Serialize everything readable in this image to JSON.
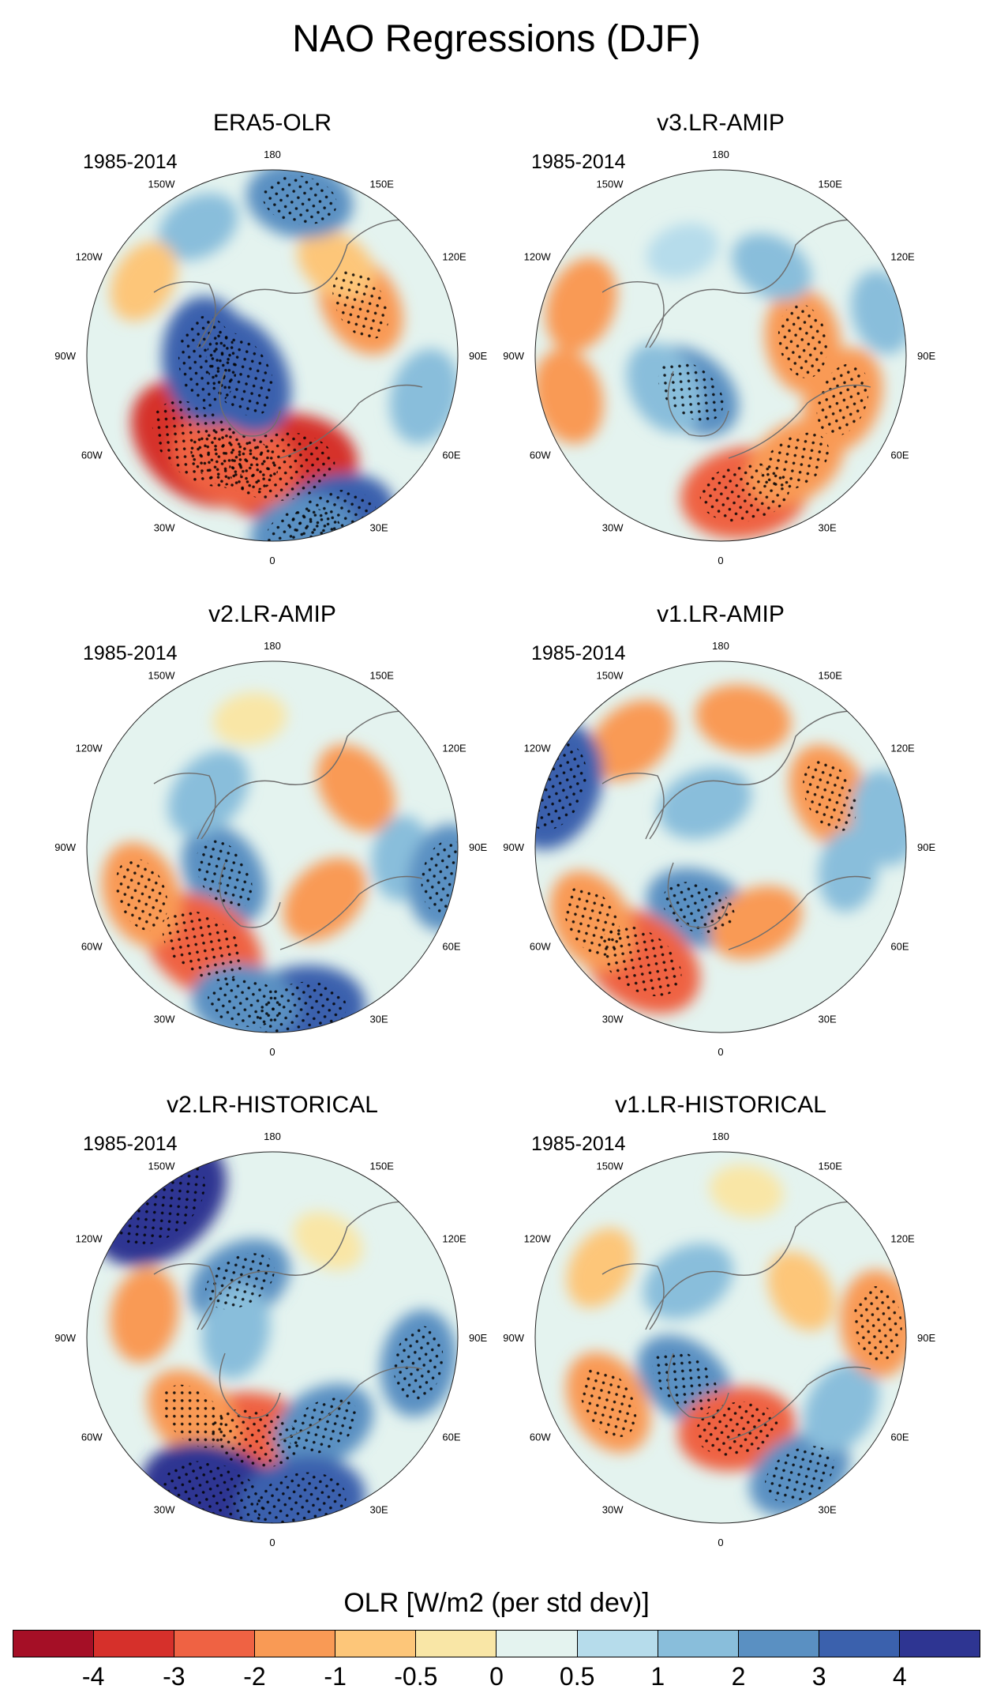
{
  "title": "NAO Regressions (DJF)",
  "chart_data": {
    "type": "heatmap",
    "projection": "north polar stereographic",
    "title": "NAO Regressions (DJF)",
    "period": "1985-2014",
    "variable": "OLR",
    "colorbar_label": "OLR [W/m2 (per std dev)]",
    "colorbar_levels": [
      "-4",
      "-3",
      "-2",
      "-1",
      "-0.5",
      "0",
      "0.5",
      "1",
      "2",
      "3",
      "4"
    ],
    "colorbar_colors": [
      "#a50f26",
      "#d6302b",
      "#ef6243",
      "#f99a55",
      "#fdc679",
      "#f9e6a6",
      "#e4f3ef",
      "#b6dceb",
      "#89bedb",
      "#5a90c2",
      "#3b61ad",
      "#2e3592"
    ],
    "longitude_labels": [
      "180",
      "150E",
      "120E",
      "90E",
      "60E",
      "30E",
      "0",
      "30W",
      "60W",
      "90W",
      "120W",
      "150W"
    ],
    "panels": [
      {
        "name": "ERA5-OLR",
        "period": "1985-2014",
        "blobs": [
          {
            "lon": -40,
            "colat": 0.62,
            "value": -4
          },
          {
            "lon": 5,
            "colat": 0.6,
            "value": -4
          },
          {
            "lon": -20,
            "colat": 0.6,
            "value": -3
          },
          {
            "lon": -85,
            "colat": 0.35,
            "value": 3
          },
          {
            "lon": -60,
            "colat": 0.2,
            "value": 3
          },
          {
            "lon": 20,
            "colat": 0.95,
            "value": 3
          },
          {
            "lon": 10,
            "colat": 0.97,
            "value": 2
          },
          {
            "lon": 120,
            "colat": 0.55,
            "value": -2
          },
          {
            "lon": 145,
            "colat": 0.6,
            "value": -1
          },
          {
            "lon": 170,
            "colat": 0.85,
            "value": 2
          },
          {
            "lon": -150,
            "colat": 0.8,
            "value": 1
          },
          {
            "lon": 75,
            "colat": 0.85,
            "value": 1.5
          },
          {
            "lon": -120,
            "colat": 0.8,
            "value": -1
          }
        ]
      },
      {
        "name": "v3.LR-AMIP",
        "period": "1985-2014",
        "blobs": [
          {
            "lon": -40,
            "colat": 0.25,
            "value": 2
          },
          {
            "lon": -60,
            "colat": 0.35,
            "value": 1.5
          },
          {
            "lon": 10,
            "colat": 0.75,
            "value": -3
          },
          {
            "lon": 35,
            "colat": 0.7,
            "value": -2
          },
          {
            "lon": 100,
            "colat": 0.45,
            "value": -2
          },
          {
            "lon": 70,
            "colat": 0.7,
            "value": -2
          },
          {
            "lon": -110,
            "colat": 0.8,
            "value": -1.5
          },
          {
            "lon": -75,
            "colat": 0.85,
            "value": -1.5
          },
          {
            "lon": 150,
            "colat": 0.55,
            "value": 1
          },
          {
            "lon": 105,
            "colat": 0.9,
            "value": 1
          },
          {
            "lon": -160,
            "colat": 0.6,
            "value": 0.5
          }
        ]
      },
      {
        "name": "v2.LR-AMIP",
        "period": "1985-2014",
        "blobs": [
          {
            "lon": -60,
            "colat": 0.3,
            "value": 2
          },
          {
            "lon": -130,
            "colat": 0.45,
            "value": 1.5
          },
          {
            "lon": -35,
            "colat": 0.65,
            "value": -3
          },
          {
            "lon": -70,
            "colat": 0.75,
            "value": -2
          },
          {
            "lon": 10,
            "colat": 0.9,
            "value": 3
          },
          {
            "lon": -10,
            "colat": 0.85,
            "value": 2
          },
          {
            "lon": 45,
            "colat": 0.4,
            "value": -1.5
          },
          {
            "lon": 125,
            "colat": 0.55,
            "value": -1.5
          },
          {
            "lon": 85,
            "colat": 0.7,
            "value": 1
          },
          {
            "lon": 80,
            "colat": 0.95,
            "value": 2
          },
          {
            "lon": -170,
            "colat": 0.7,
            "value": -0.5
          }
        ]
      },
      {
        "name": "v1.LR-AMIP",
        "period": "1985-2014",
        "blobs": [
          {
            "lon": -20,
            "colat": 0.35,
            "value": 2
          },
          {
            "lon": -160,
            "colat": 0.25,
            "value": 1.5
          },
          {
            "lon": -35,
            "colat": 0.75,
            "value": -3
          },
          {
            "lon": -60,
            "colat": 0.8,
            "value": -2
          },
          {
            "lon": 25,
            "colat": 0.45,
            "value": -1.5
          },
          {
            "lon": 115,
            "colat": 0.65,
            "value": -2
          },
          {
            "lon": 170,
            "colat": 0.7,
            "value": -1.5
          },
          {
            "lon": -140,
            "colat": 0.75,
            "value": -1.5
          },
          {
            "lon": -110,
            "colat": 0.95,
            "value": 3
          },
          {
            "lon": 80,
            "colat": 0.7,
            "value": 1
          },
          {
            "lon": 100,
            "colat": 0.9,
            "value": 1.5
          }
        ]
      },
      {
        "name": "v2.LR-HISTORICAL",
        "period": "1985-2014",
        "blobs": [
          {
            "lon": -150,
            "colat": 0.35,
            "value": 2
          },
          {
            "lon": -100,
            "colat": 0.2,
            "value": 1.5
          },
          {
            "lon": -140,
            "colat": 0.95,
            "value": 4
          },
          {
            "lon": -10,
            "colat": 0.55,
            "value": -3
          },
          {
            "lon": -45,
            "colat": 0.6,
            "value": -2
          },
          {
            "lon": 30,
            "colat": 0.55,
            "value": 2
          },
          {
            "lon": -20,
            "colat": 0.92,
            "value": 4
          },
          {
            "lon": 10,
            "colat": 0.9,
            "value": 3
          },
          {
            "lon": 80,
            "colat": 0.8,
            "value": 2
          },
          {
            "lon": -100,
            "colat": 0.7,
            "value": -1.5
          },
          {
            "lon": 150,
            "colat": 0.6,
            "value": -0.5
          }
        ]
      },
      {
        "name": "v1.LR-HISTORICAL",
        "period": "1985-2014",
        "blobs": [
          {
            "lon": -40,
            "colat": 0.3,
            "value": 2
          },
          {
            "lon": -150,
            "colat": 0.35,
            "value": 1.5
          },
          {
            "lon": -60,
            "colat": 0.7,
            "value": -2
          },
          {
            "lon": 10,
            "colat": 0.5,
            "value": -2.5
          },
          {
            "lon": 30,
            "colat": 0.85,
            "value": 2
          },
          {
            "lon": 60,
            "colat": 0.75,
            "value": 1.5
          },
          {
            "lon": 95,
            "colat": 0.85,
            "value": -2
          },
          {
            "lon": 120,
            "colat": 0.5,
            "value": -1
          },
          {
            "lon": -120,
            "colat": 0.75,
            "value": -1
          },
          {
            "lon": 170,
            "colat": 0.8,
            "value": -0.5
          }
        ]
      }
    ]
  }
}
